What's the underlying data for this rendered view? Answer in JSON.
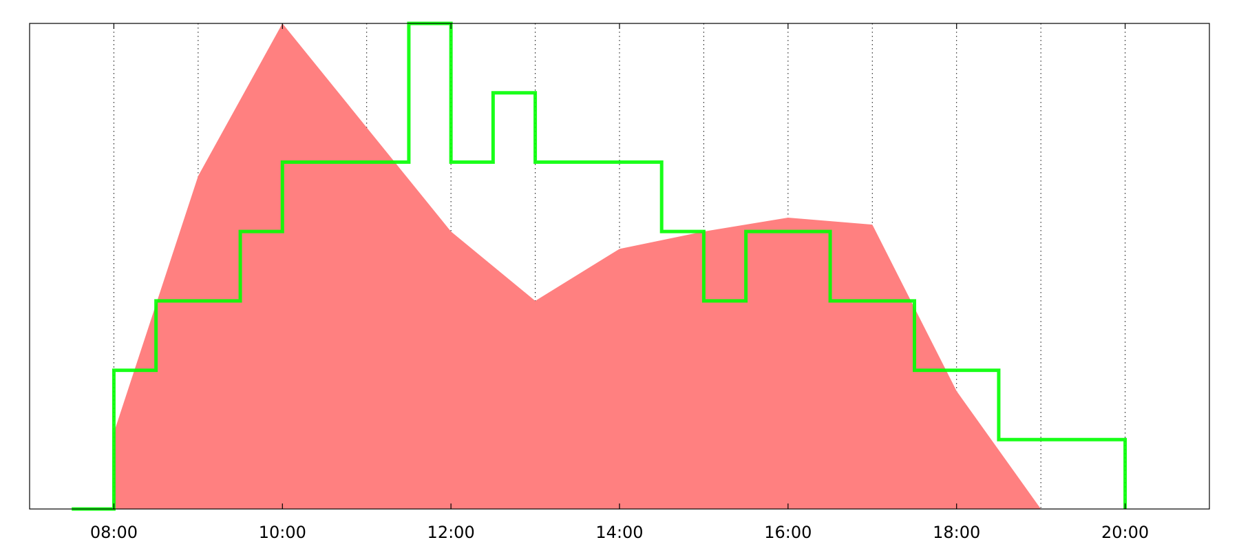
{
  "chart_data": {
    "type": "area",
    "title": "",
    "xlabel": "",
    "ylabel": "",
    "x_axis": {
      "unit": "hour",
      "range": [
        7,
        21
      ],
      "ticks": [
        8,
        10,
        12,
        14,
        16,
        18,
        20
      ],
      "tick_labels": [
        "08:00",
        "10:00",
        "12:00",
        "14:00",
        "16:00",
        "18:00",
        "20:00"
      ],
      "minor_grid": [
        9,
        11,
        13,
        15,
        17,
        19
      ]
    },
    "y_axis": {
      "range": [
        0,
        7
      ],
      "tick_labels": []
    },
    "grid": "vertical dotted",
    "series": [
      {
        "type": "area",
        "color": "#ff8080",
        "x": [
          8,
          9,
          10,
          11,
          12,
          13,
          14,
          15,
          16,
          17,
          18,
          19
        ],
        "values": [
          1.1,
          4.8,
          7.0,
          5.5,
          4.0,
          3.0,
          3.75,
          4.0,
          4.2,
          4.1,
          1.7,
          0
        ]
      },
      {
        "type": "step",
        "color": "#00ff00",
        "x": [
          7.5,
          8,
          8.5,
          9.5,
          10,
          11.5,
          12,
          12.5,
          13,
          14.5,
          15,
          15.5,
          16.5,
          17.5,
          18.5,
          20
        ],
        "values": [
          0,
          2,
          3,
          4,
          5,
          7,
          5,
          6,
          5,
          4,
          3,
          4,
          3,
          2,
          1,
          0
        ]
      }
    ]
  }
}
